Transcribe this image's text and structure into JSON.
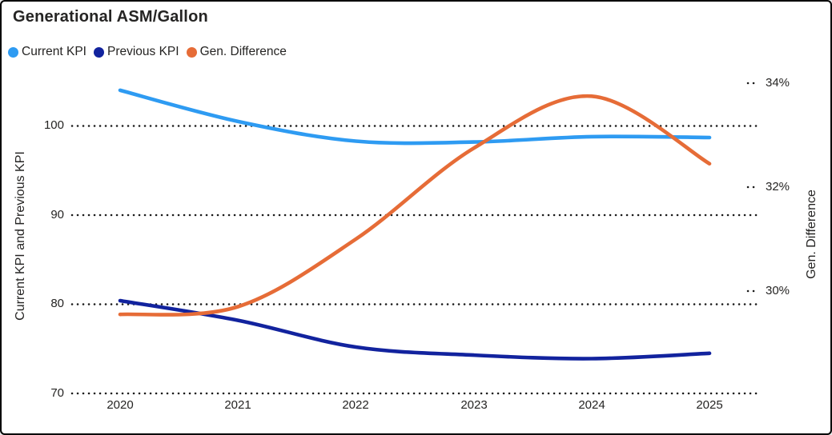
{
  "card": {
    "title": "Generational ASM/Gallon"
  },
  "colors": {
    "current_kpi": "#2E9BF2",
    "previous_kpi": "#12239E",
    "gen_difference": "#E66C37",
    "text": "#252423",
    "grid": "#1A1A1A",
    "border": "#000000",
    "background": "#FFFFFF"
  },
  "chart_data": {
    "type": "line",
    "smooth": true,
    "title": "Generational ASM/Gallon",
    "x": [
      2020,
      2021,
      2022,
      2023,
      2024,
      2025
    ],
    "x_labels": [
      "2020",
      "2021",
      "2022",
      "2023",
      "2024",
      "2025"
    ],
    "series": [
      {
        "name": "Current KPI",
        "axis": "left",
        "color": "#2E9BF2",
        "values": [
          104.0,
          100.5,
          98.3,
          98.2,
          98.8,
          98.7
        ]
      },
      {
        "name": "Previous KPI",
        "axis": "left",
        "color": "#12239E",
        "values": [
          80.4,
          78.2,
          75.2,
          74.3,
          73.9,
          74.5
        ]
      },
      {
        "name": "Gen. Difference",
        "axis": "right",
        "color": "#E66C37",
        "values": [
          29.55,
          29.7,
          31.0,
          32.75,
          33.75,
          32.45
        ],
        "unit": "%"
      }
    ],
    "left_axis": {
      "title": "Current KPI and Previous KPI",
      "tick_labels": [
        "100",
        "90",
        "80",
        "70"
      ],
      "tick_values": [
        100,
        90,
        80,
        70
      ],
      "range": [
        70,
        106
      ]
    },
    "right_axis": {
      "title": "Gen. Difference",
      "tick_labels": [
        "34%",
        "32%",
        "30%"
      ],
      "tick_values": [
        34,
        32,
        30
      ],
      "range": [
        28,
        34.2
      ]
    },
    "grid": "dotted-horizontal",
    "legend_position": "top-left"
  }
}
